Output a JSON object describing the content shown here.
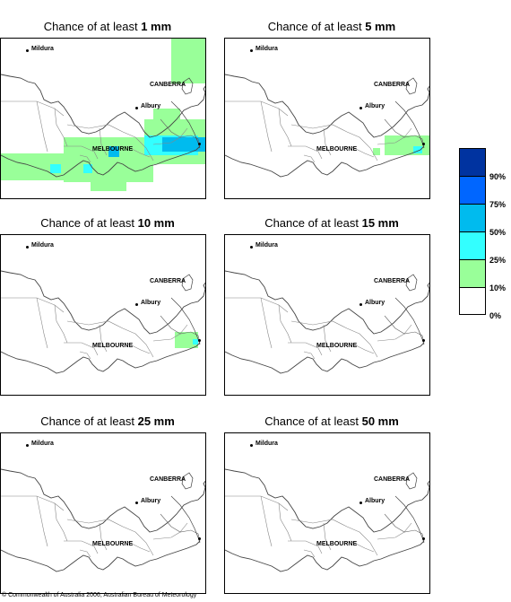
{
  "title_prefix": "Chance of at least",
  "panels": [
    {
      "amount": "1 mm",
      "level": "1mm"
    },
    {
      "amount": "5 mm",
      "level": "5mm"
    },
    {
      "amount": "10 mm",
      "level": "10mm"
    },
    {
      "amount": "15 mm",
      "level": "15mm"
    },
    {
      "amount": "25 mm",
      "level": "25mm"
    },
    {
      "amount": "50 mm",
      "level": "50mm"
    }
  ],
  "places": {
    "mildura": "Mildura",
    "canberra": "CANBERRA",
    "albury": "Albury",
    "melbourne": "MELBOURNE"
  },
  "legend": {
    "labels": [
      "90%",
      "75%",
      "50%",
      "25%",
      "10%",
      "0%"
    ],
    "colors": [
      "#0033a0",
      "#0066ff",
      "#00bbee",
      "#33ffff",
      "#99ff99",
      "#ffffff"
    ]
  },
  "copyright": "© Commonwealth of Australia 2006, Australian Bureau of Meteorology"
}
